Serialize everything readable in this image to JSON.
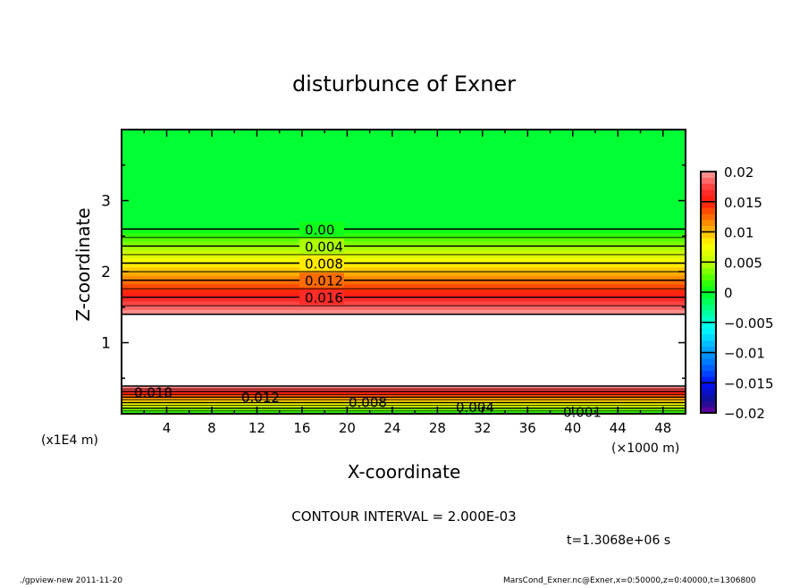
{
  "chart_data": {
    "type": "heatmap",
    "subtype": "filled-contour",
    "title": "disturbunce of Exner",
    "xlabel": "X-coordinate",
    "ylabel": "Z-coordinate",
    "x_unit_label": "(×1000 m)",
    "y_unit_label": "(x1E4 m)",
    "xlim": [
      0,
      50
    ],
    "ylim": [
      0,
      4
    ],
    "x_ticks": [
      4,
      8,
      12,
      16,
      20,
      24,
      28,
      32,
      36,
      40,
      44,
      48
    ],
    "y_ticks": [
      1,
      2,
      3
    ],
    "contour_interval_text": "CONTOUR INTERVAL = 2.000E-03",
    "contour_interval": 0.002,
    "upper_contour_labels": [
      "0.00",
      "0.004",
      "0.008",
      "0.012",
      "0.016"
    ],
    "lower_contour_labels": [
      "0.018",
      "0.012",
      "0.008",
      "0.004",
      "0.001"
    ],
    "field_profile": {
      "description_levels": "value vs z (x1E4 m)",
      "upper_zero_z": 2.6,
      "upper_max_z": 1.4,
      "lower_max_z": 0.39,
      "lower_zero_z": 0.0,
      "saturated_range_z": [
        0.39,
        1.4
      ],
      "top_value": -0.0005
    },
    "colorbar": {
      "range": [
        -0.02,
        0.02
      ],
      "tick_labels": [
        "0.02",
        "0.015",
        "0.01",
        "0.005",
        "0",
        "−0.005",
        "−0.01",
        "−0.015",
        "−0.02"
      ],
      "tick_values": [
        0.02,
        0.015,
        0.01,
        0.005,
        0,
        -0.005,
        -0.01,
        -0.015,
        -0.02
      ],
      "color_stops": [
        [
          0.02,
          "#ffa0a0"
        ],
        [
          0.017,
          "#ff3030"
        ],
        [
          0.015,
          "#ff1a0a"
        ],
        [
          0.013,
          "#ff5a00"
        ],
        [
          0.011,
          "#ffa000"
        ],
        [
          0.009,
          "#ffd800"
        ],
        [
          0.008,
          "#ffff00"
        ],
        [
          0.005,
          "#c0ff00"
        ],
        [
          0.002,
          "#40ff00"
        ],
        [
          0.0,
          "#00ff20"
        ],
        [
          -0.003,
          "#00ff90"
        ],
        [
          -0.006,
          "#00ffff"
        ],
        [
          -0.009,
          "#00b0ff"
        ],
        [
          -0.012,
          "#0070ff"
        ],
        [
          -0.015,
          "#0010ff"
        ],
        [
          -0.018,
          "#101090"
        ],
        [
          -0.02,
          "#7000a0"
        ]
      ]
    }
  },
  "footer": {
    "time": "t=1.3068e+06 s",
    "program": "./gpview-new  2011-11-20",
    "source": "MarsCond_Exner.nc@Exner,x=0:50000,z=0:40000,t=1306800"
  }
}
